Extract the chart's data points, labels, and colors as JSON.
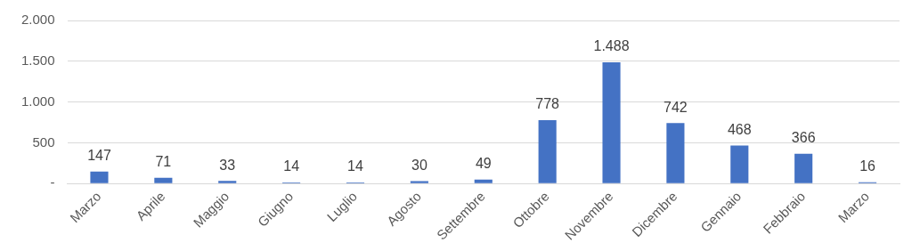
{
  "chart_data": {
    "type": "bar",
    "categories": [
      "Marzo",
      "Aprile",
      "Maggio",
      "Giugno",
      "Luglio",
      "Agosto",
      "Settembre",
      "Ottobre",
      "Novembre",
      "Dicembre",
      "Gennaio",
      "Febbraio",
      "Marzo"
    ],
    "values": [
      147,
      71,
      33,
      14,
      14,
      30,
      49,
      778,
      1488,
      742,
      468,
      366,
      16
    ],
    "value_labels": [
      "147",
      "71",
      "33",
      "14",
      "14",
      "30",
      "49",
      "778",
      "1.488",
      "742",
      "468",
      "366",
      "16"
    ],
    "color": "#4472c4",
    "ylim": [
      0,
      2000
    ],
    "yticks": [
      {
        "value": 0,
        "label": "-"
      },
      {
        "value": 500,
        "label": "500"
      },
      {
        "value": 1000,
        "label": "1.000"
      },
      {
        "value": 1500,
        "label": "1.500"
      },
      {
        "value": 2000,
        "label": "2.000"
      }
    ],
    "grid": "y"
  }
}
